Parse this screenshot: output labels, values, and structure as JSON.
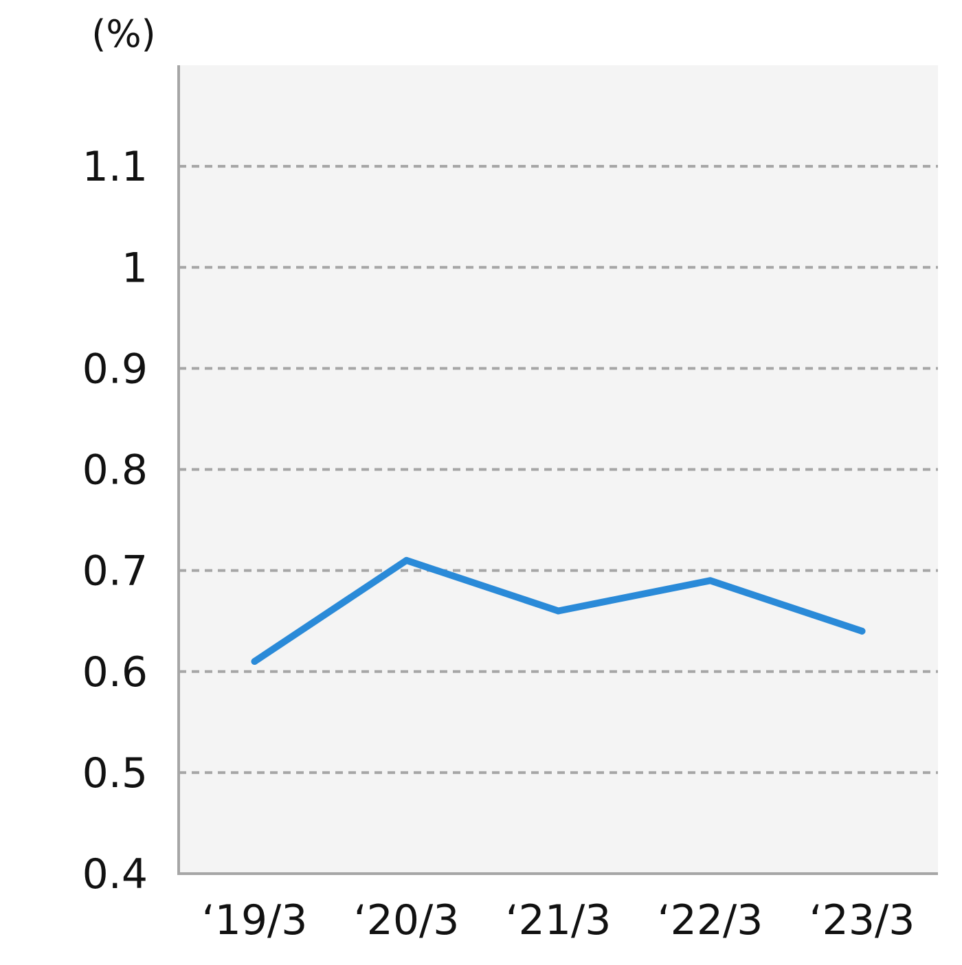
{
  "chart_data": {
    "type": "line",
    "title": "",
    "xlabel": "",
    "ylabel": "(%)",
    "categories": [
      "‘19/3",
      "‘20/3",
      "‘21/3",
      "‘22/3",
      "‘23/3"
    ],
    "series": [
      {
        "values": [
          0.61,
          0.71,
          0.66,
          0.69,
          0.64
        ],
        "color": "#2a8ad8"
      }
    ],
    "yticks": [
      "0.4",
      "0.5",
      "0.6",
      "0.7",
      "0.8",
      "0.9",
      "1",
      "1.1"
    ],
    "ylim": [
      0.4,
      1.2
    ],
    "grid": true,
    "colors": {
      "plot_background": "#f4f4f4",
      "axis": "#a6a6a6",
      "grid": "#a6a6a6",
      "line": "#2a8ad8"
    }
  }
}
